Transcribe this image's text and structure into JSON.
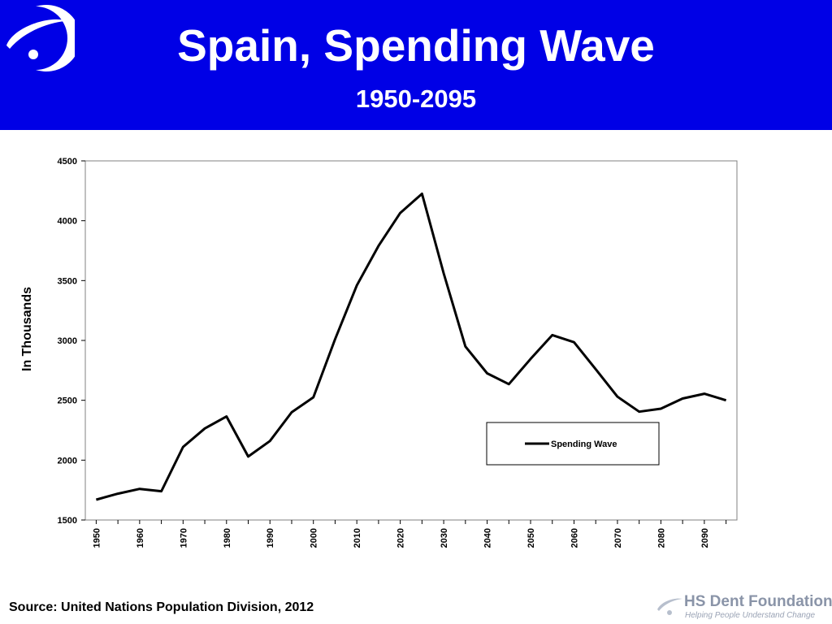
{
  "header": {
    "title": "Spain, Spending Wave",
    "subtitle": "1950-2095",
    "bg_color": "#0000e6"
  },
  "footer": {
    "source": "Source: United Nations Population Division, 2012",
    "brand_name": "HS Dent Foundation",
    "brand_tagline": "Helping People Understand Change"
  },
  "chart_data": {
    "type": "line",
    "ylabel": "In Thousands",
    "ylim": [
      1500,
      4500
    ],
    "y_ticks": [
      1500,
      2000,
      2500,
      3000,
      3500,
      4000,
      4500
    ],
    "xlim": [
      1950,
      2095
    ],
    "x_ticks": [
      1950,
      1960,
      1970,
      1980,
      1990,
      2000,
      2010,
      2020,
      2030,
      2040,
      2050,
      2060,
      2070,
      2080,
      2090
    ],
    "grid": false,
    "legend_placement": "bottom-right inside",
    "series": [
      {
        "name": "Spending Wave",
        "color": "#000000",
        "x": [
          1950,
          1955,
          1960,
          1965,
          1970,
          1975,
          1980,
          1985,
          1990,
          1995,
          2000,
          2005,
          2010,
          2015,
          2020,
          2025,
          2030,
          2035,
          2040,
          2045,
          2050,
          2055,
          2060,
          2065,
          2070,
          2075,
          2080,
          2085,
          2090,
          2095
        ],
        "values": [
          1670,
          1720,
          1760,
          1740,
          2110,
          2265,
          2365,
          2030,
          2160,
          2400,
          2525,
          3010,
          3460,
          3790,
          4065,
          4225,
          3560,
          2950,
          2725,
          2635,
          2845,
          3045,
          2985,
          2760,
          2530,
          2405,
          2430,
          2515,
          2555,
          2500
        ]
      }
    ]
  }
}
